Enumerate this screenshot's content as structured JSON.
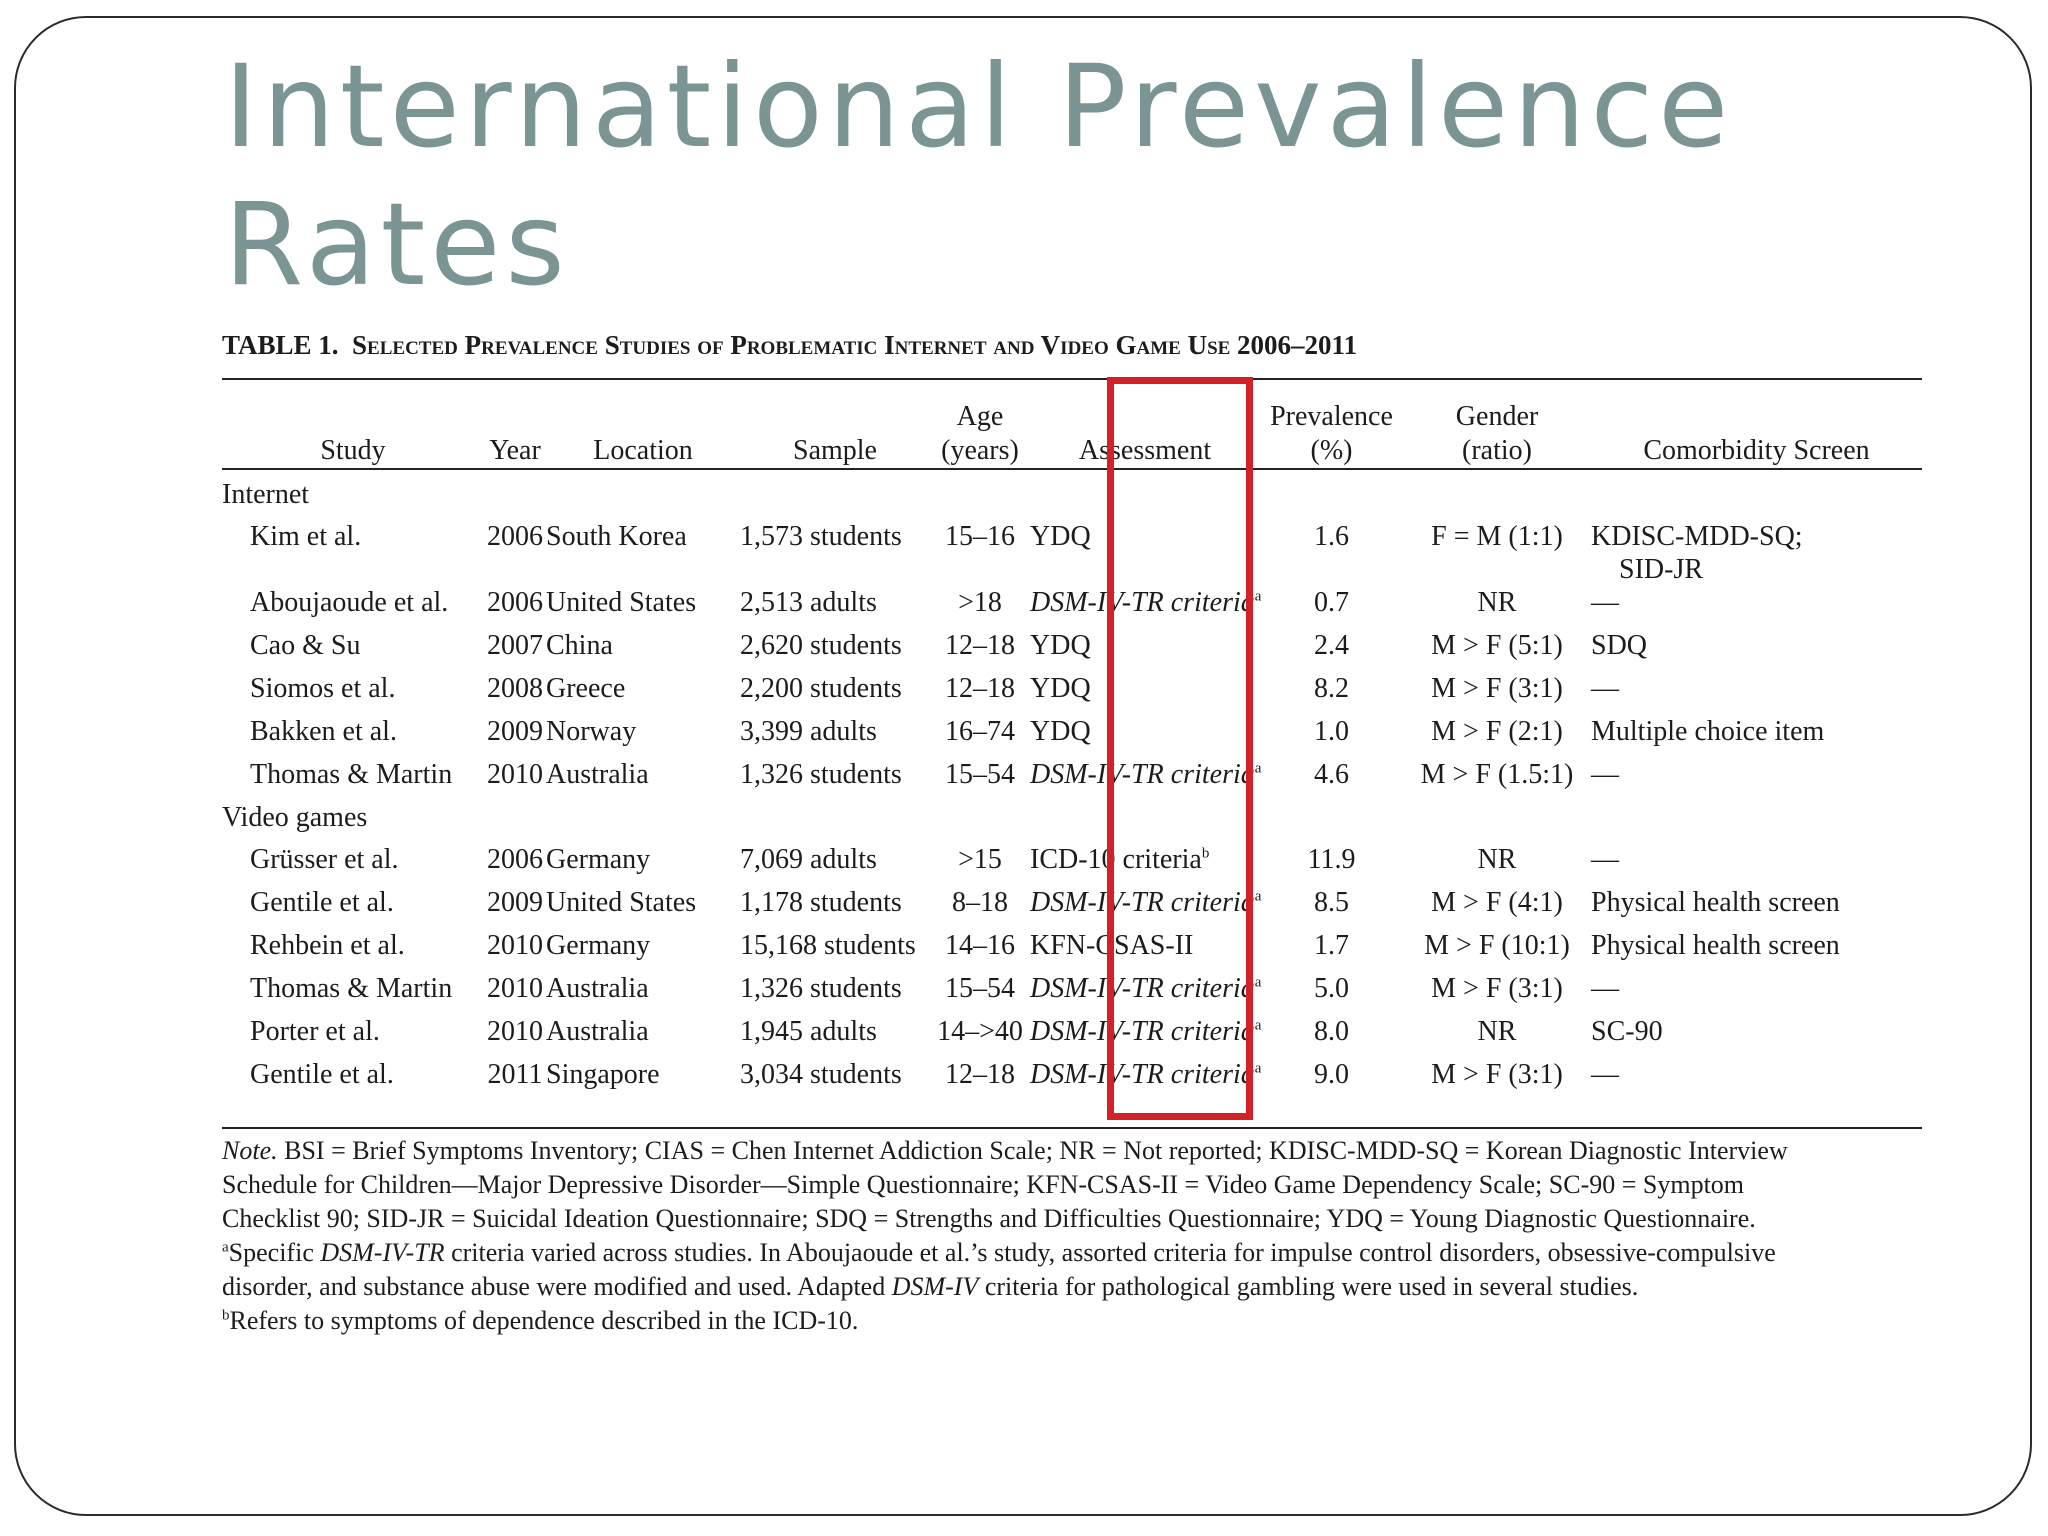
{
  "slide": {
    "title_line1": "International Prevalence",
    "title_line2": "Rates"
  },
  "table": {
    "caption_prefix": "TABLE 1.",
    "caption_text": "Selected Prevalence Studies of Problematic Internet and Video Game Use 2006–2011",
    "headers": {
      "study": "Study",
      "year": "Year",
      "location": "Location",
      "sample": "Sample",
      "age_line1": "Age",
      "age_line2": "(years)",
      "assessment": "Assessment",
      "prevalence_line1": "Prevalence",
      "prevalence_line2": "(%)",
      "gender_line1": "Gender",
      "gender_line2": "(ratio)",
      "comorbidity": "Comorbidity Screen"
    },
    "sections": [
      {
        "label": "Internet",
        "rows": [
          {
            "study": "Kim et al.",
            "year": "2006",
            "location": "South Korea",
            "sample": "1,573 students",
            "age": "15–16",
            "assessment": "YDQ",
            "prevalence": "1.6",
            "gender": "F = M (1:1)",
            "comorbidity": "KDISC-MDD-SQ;",
            "comorbidity2": "SID-JR"
          },
          {
            "study": "Aboujaoude et al.",
            "year": "2006",
            "location": "United States",
            "sample": "2,513 adults",
            "age": ">18",
            "assessment": "DSM-IV-TR criteria",
            "sup": "a",
            "prevalence": "0.7",
            "gender": "NR",
            "comorbidity": "—"
          },
          {
            "study": "Cao & Su",
            "year": "2007",
            "location": "China",
            "sample": "2,620 students",
            "age": "12–18",
            "assessment": "YDQ",
            "prevalence": "2.4",
            "gender": "M > F (5:1)",
            "comorbidity": "SDQ"
          },
          {
            "study": "Siomos et al.",
            "year": "2008",
            "location": "Greece",
            "sample": "2,200 students",
            "age": "12–18",
            "assessment": "YDQ",
            "prevalence": "8.2",
            "gender": "M > F (3:1)",
            "comorbidity": "—"
          },
          {
            "study": "Bakken et al.",
            "year": "2009",
            "location": "Norway",
            "sample": "3,399 adults",
            "age": "16–74",
            "assessment": "YDQ",
            "prevalence": "1.0",
            "gender": "M > F (2:1)",
            "comorbidity": "Multiple choice item"
          },
          {
            "study": "Thomas & Martin",
            "year": "2010",
            "location": "Australia",
            "sample": "1,326 students",
            "age": "15–54",
            "assessment": "DSM-IV-TR criteria",
            "sup": "a",
            "prevalence": "4.6",
            "gender": "M > F (1.5:1)",
            "comorbidity": "—"
          }
        ]
      },
      {
        "label": "Video games",
        "rows": [
          {
            "study": "Grüsser et al.",
            "year": "2006",
            "location": "Germany",
            "sample": "7,069 adults",
            "age": ">15",
            "assessment": "ICD-10 criteria",
            "sup": "b",
            "plain": true,
            "prevalence": "11.9",
            "gender": "NR",
            "comorbidity": "—"
          },
          {
            "study": "Gentile et al.",
            "year": "2009",
            "location": "United States",
            "sample": "1,178 students",
            "age": "8–18",
            "assessment": "DSM-IV-TR criteria",
            "sup": "a",
            "prevalence": "8.5",
            "gender": "M > F (4:1)",
            "comorbidity": "Physical health screen"
          },
          {
            "study": "Rehbein et al.",
            "year": "2010",
            "location": "Germany",
            "sample": "15,168 students",
            "age": "14–16",
            "assessment": "KFN-CSAS-II",
            "prevalence": "1.7",
            "gender": "M > F (10:1)",
            "comorbidity": "Physical health screen"
          },
          {
            "study": "Thomas & Martin",
            "year": "2010",
            "location": "Australia",
            "sample": "1,326 students",
            "age": "15–54",
            "assessment": "DSM-IV-TR criteria",
            "sup": "a",
            "prevalence": "5.0",
            "gender": "M > F (3:1)",
            "comorbidity": "—"
          },
          {
            "study": "Porter et al.",
            "year": "2010",
            "location": "Australia",
            "sample": "1,945 adults",
            "age": "14–>40",
            "assessment": "DSM-IV-TR criteria",
            "sup": "a",
            "prevalence": "8.0",
            "gender": "NR",
            "comorbidity": "SC-90"
          },
          {
            "study": "Gentile et al.",
            "year": "2011",
            "location": "Singapore",
            "sample": "3,034 students",
            "age": "12–18",
            "assessment": "DSM-IV-TR criteria",
            "sup": "a",
            "prevalence": "9.0",
            "gender": "M > F (3:1)",
            "comorbidity": "—"
          }
        ]
      }
    ],
    "note": {
      "label": "Note.",
      "line1": "BSI = Brief Symptoms Inventory; CIAS = Chen Internet Addiction Scale; NR = Not reported; KDISC-MDD-SQ = Korean Diagnostic Interview",
      "line2": "Schedule for Children—Major Depressive Disorder—Simple Questionnaire; KFN-CSAS-II = Video Game Dependency Scale; SC-90 = Symptom",
      "line3": "Checklist 90; SID-JR = Suicidal Ideation Questionnaire; SDQ = Strengths and Difficulties Questionnaire; YDQ = Young Diagnostic Questionnaire.",
      "footnote_a_mark": "a",
      "footnote_a_1": "Specific ",
      "footnote_a_em1": "DSM-IV-TR",
      "footnote_a_2": " criteria varied across studies. In Aboujaoude et al.’s study, assorted criteria for impulse control disorders, obsessive-compulsive",
      "footnote_a_3": "disorder, and substance abuse were modified and used. Adapted ",
      "footnote_a_em2": "DSM-IV",
      "footnote_a_4": " criteria for pathological gambling were used in several studies.",
      "footnote_b_mark": "b",
      "footnote_b_text": "Refers to symptoms of dependence described in the ICD-10."
    }
  },
  "colors": {
    "title": "#7a9594",
    "highlight": "#d42027"
  }
}
